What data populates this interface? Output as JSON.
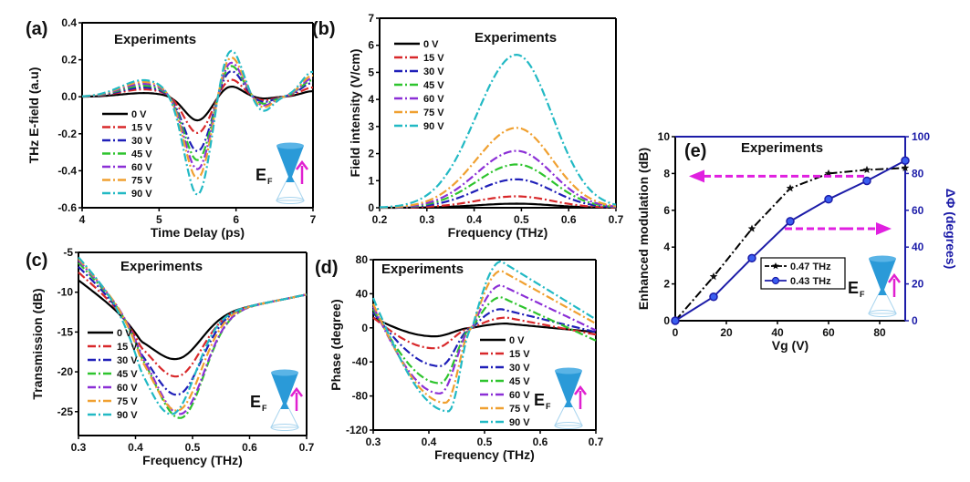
{
  "chart_data": [
    {
      "id": "a",
      "type": "line",
      "panel_label": "(a)",
      "annotation": "Experiments",
      "xlabel": "Time Delay (ps)",
      "ylabel": "THz E-field (a.u)",
      "xlim": [
        4,
        7
      ],
      "ylim": [
        -0.6,
        0.4
      ],
      "xticks": [
        4,
        5,
        6,
        7
      ],
      "yticks": [
        -0.6,
        -0.4,
        -0.2,
        0.0,
        0.2,
        0.4
      ],
      "ytick_labels": [
        "-0.6",
        "-0.4",
        "-0.2",
        "0.0",
        "0.2",
        "0.4"
      ],
      "legend_position": "lower-left",
      "inset": "dirac-cone",
      "series": [
        {
          "name": "0 V",
          "color": "#000000",
          "min": -0.13,
          "peak": 0.06,
          "pre": 0.02,
          "post_dip": -0.01
        },
        {
          "name": "15 V",
          "color": "#d8282a",
          "min": -0.2,
          "peak": 0.1,
          "pre": 0.04,
          "post_dip": -0.02
        },
        {
          "name": "30 V",
          "color": "#1f1fb8",
          "min": -0.3,
          "peak": 0.15,
          "pre": 0.05,
          "post_dip": -0.03
        },
        {
          "name": "45 V",
          "color": "#2ec42e",
          "min": -0.35,
          "peak": 0.18,
          "pre": 0.06,
          "post_dip": -0.04
        },
        {
          "name": "60 V",
          "color": "#8b2fd6",
          "min": -0.4,
          "peak": 0.2,
          "pre": 0.07,
          "post_dip": -0.05
        },
        {
          "name": "75 V",
          "color": "#f0a030",
          "min": -0.45,
          "peak": 0.23,
          "pre": 0.08,
          "post_dip": -0.06
        },
        {
          "name": "90 V",
          "color": "#22b9c4",
          "min": -0.54,
          "peak": 0.27,
          "pre": 0.09,
          "post_dip": -0.08
        }
      ]
    },
    {
      "id": "b",
      "type": "line",
      "panel_label": "(b)",
      "annotation": "Experiments",
      "xlabel": "Frequency (THz)",
      "ylabel": "Field intensity (V/cm)",
      "xlim": [
        0.2,
        0.7
      ],
      "ylim": [
        0,
        7
      ],
      "xticks": [
        0.2,
        0.3,
        0.4,
        0.5,
        0.6,
        0.7
      ],
      "yticks": [
        0,
        1,
        2,
        3,
        4,
        5,
        6,
        7
      ],
      "legend_position": "upper-left",
      "series": [
        {
          "name": "0 V",
          "color": "#000000",
          "peak_x": 0.49,
          "peak_y": 0.15
        },
        {
          "name": "15 V",
          "color": "#d8282a",
          "peak_x": 0.49,
          "peak_y": 0.42
        },
        {
          "name": "30 V",
          "color": "#1f1fb8",
          "peak_x": 0.49,
          "peak_y": 1.05
        },
        {
          "name": "45 V",
          "color": "#2ec42e",
          "peak_x": 0.49,
          "peak_y": 1.6
        },
        {
          "name": "60 V",
          "color": "#8b2fd6",
          "peak_x": 0.49,
          "peak_y": 2.1
        },
        {
          "name": "75 V",
          "color": "#f0a030",
          "peak_x": 0.49,
          "peak_y": 2.95
        },
        {
          "name": "90 V",
          "color": "#22b9c4",
          "peak_x": 0.49,
          "peak_y": 5.65
        }
      ]
    },
    {
      "id": "c",
      "type": "line",
      "panel_label": "(c)",
      "annotation": "Experiments",
      "xlabel": "Frequency (THz)",
      "ylabel": "Transmission (dB)",
      "xlim": [
        0.3,
        0.7
      ],
      "ylim": [
        -28,
        -5
      ],
      "xticks": [
        0.3,
        0.4,
        0.5,
        0.6,
        0.7
      ],
      "yticks": [
        -25,
        -20,
        -15,
        -10,
        -5
      ],
      "legend_position": "lower-left",
      "inset": "dirac-cone",
      "series": [
        {
          "name": "0 V",
          "color": "#000000",
          "start": -8.5,
          "min_x": 0.475,
          "min_y": -19.0,
          "end": -10.3
        },
        {
          "name": "15 V",
          "color": "#d8282a",
          "start": -7.5,
          "min_x": 0.475,
          "min_y": -21.2,
          "end": -10.3
        },
        {
          "name": "30 V",
          "color": "#1f1fb8",
          "start": -6.8,
          "min_x": 0.475,
          "min_y": -23.5,
          "end": -10.3
        },
        {
          "name": "45 V",
          "color": "#2ec42e",
          "start": -6.3,
          "min_x": 0.48,
          "min_y": -26.5,
          "end": -10.3
        },
        {
          "name": "60 V",
          "color": "#8b2fd6",
          "start": -6.0,
          "min_x": 0.48,
          "min_y": -26.0,
          "end": -10.3
        },
        {
          "name": "75 V",
          "color": "#f0a030",
          "start": -5.8,
          "min_x": 0.475,
          "min_y": -25.5,
          "end": -10.3
        },
        {
          "name": "90 V",
          "color": "#22b9c4",
          "start": -5.6,
          "min_x": 0.465,
          "min_y": -25.8,
          "end": -10.3
        }
      ]
    },
    {
      "id": "d",
      "type": "line",
      "panel_label": "(d)",
      "annotation": "Experiments",
      "xlabel": "Frequency (THz)",
      "ylabel": "Phase (degree)",
      "xlim": [
        0.3,
        0.7
      ],
      "ylim": [
        -120,
        80
      ],
      "xticks": [
        0.3,
        0.4,
        0.5,
        0.6,
        0.7
      ],
      "yticks": [
        -120,
        -80,
        -40,
        0,
        40,
        80
      ],
      "legend_position": "lower-right",
      "inset": "dirac-cone",
      "series": [
        {
          "name": "0 V",
          "color": "#000000",
          "start": 12,
          "min_x": 0.41,
          "min_y": -10,
          "max_x": 0.54,
          "max_y": 5,
          "end": -5
        },
        {
          "name": "15 V",
          "color": "#d8282a",
          "start": 12,
          "min_x": 0.41,
          "min_y": -24,
          "max_x": 0.54,
          "max_y": 12,
          "end": -8
        },
        {
          "name": "30 V",
          "color": "#1f1fb8",
          "start": 18,
          "min_x": 0.42,
          "min_y": -45,
          "max_x": 0.53,
          "max_y": 22,
          "end": -5
        },
        {
          "name": "45 V",
          "color": "#2ec42e",
          "start": 22,
          "min_x": 0.42,
          "min_y": -65,
          "max_x": 0.53,
          "max_y": 36,
          "end": -15
        },
        {
          "name": "60 V",
          "color": "#8b2fd6",
          "start": 25,
          "min_x": 0.42,
          "min_y": -77,
          "max_x": 0.53,
          "max_y": 50,
          "end": -3
        },
        {
          "name": "75 V",
          "color": "#f0a030",
          "start": 28,
          "min_x": 0.43,
          "min_y": -88,
          "max_x": 0.53,
          "max_y": 67,
          "end": 5
        },
        {
          "name": "90 V",
          "color": "#22b9c4",
          "start": 35,
          "min_x": 0.435,
          "min_y": -98,
          "max_x": 0.53,
          "max_y": 78,
          "end": 10
        }
      ]
    },
    {
      "id": "e",
      "type": "line",
      "panel_label": "(e)",
      "annotation": "Experiments",
      "xlabel": "Vg (V)",
      "ylabel": "Enhanced modulation (dB)",
      "y2label": "ΔΦ (degrees)",
      "xlim": [
        0,
        90
      ],
      "ylim": [
        0,
        10
      ],
      "y2lim": [
        0,
        100
      ],
      "xticks": [
        0,
        20,
        40,
        60,
        80
      ],
      "yticks": [
        0,
        2,
        4,
        6,
        8,
        10
      ],
      "y2ticks": [
        0,
        20,
        40,
        60,
        80,
        100
      ],
      "legend_position": "center",
      "inset": "dirac-cone",
      "x": [
        0,
        15,
        30,
        45,
        60,
        75,
        90
      ],
      "series": [
        {
          "name": "0.47 THz",
          "color": "#000000",
          "axis": "left",
          "marker": "star",
          "style": "dash-dot",
          "values": [
            0,
            2.4,
            5.0,
            7.2,
            8.0,
            8.2,
            8.3
          ]
        },
        {
          "name": "0.43 THz",
          "color": "#1c1ca8",
          "axis": "right",
          "marker": "circle",
          "style": "solid",
          "values": [
            0,
            13,
            34,
            54,
            66,
            76,
            87
          ]
        }
      ],
      "arrows": [
        {
          "direction": "left",
          "points_to": "left-axis",
          "color": "#e020e0"
        },
        {
          "direction": "right",
          "points_to": "right-axis",
          "color": "#e020e0"
        }
      ]
    }
  ],
  "inset_label": {
    "main": "E",
    "sub": "F"
  }
}
